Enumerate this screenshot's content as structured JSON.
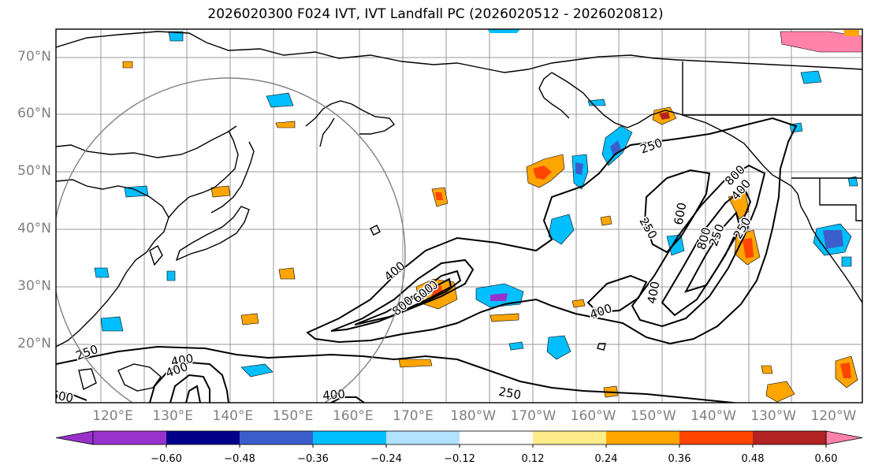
{
  "title": "2026020300 F024 IVT, IVT Landfall PC (2026020512 - 2026020812)",
  "map": {
    "lat_labels": [
      "70°N",
      "60°N",
      "50°N",
      "40°N",
      "30°N",
      "20°N"
    ],
    "lon_labels": [
      "120°E",
      "130°E",
      "140°E",
      "150°E",
      "160°E",
      "170°E",
      "180°W",
      "170°W",
      "160°W",
      "150°W",
      "140°W",
      "130°W",
      "120°W"
    ],
    "contour_labels": [
      "250",
      "250",
      "400",
      "600",
      "800",
      "800",
      "600",
      "400",
      "250",
      "400",
      "800",
      "600",
      "250",
      "400",
      "250",
      "400",
      "600",
      "400",
      "250",
      "400"
    ]
  },
  "colorbar": {
    "ticks": [
      "−0.60",
      "−0.48",
      "−0.36",
      "−0.24",
      "−0.12",
      "0.12",
      "0.24",
      "0.36",
      "0.48",
      "0.60"
    ],
    "colors": [
      "#9932cc",
      "#00008b",
      "#3a5fcd",
      "#00bfff",
      "#b0e2ff",
      "#ffffff",
      "#ffec8b",
      "#ffa500",
      "#ff4500",
      "#b22222",
      "#ff82ab"
    ]
  }
}
